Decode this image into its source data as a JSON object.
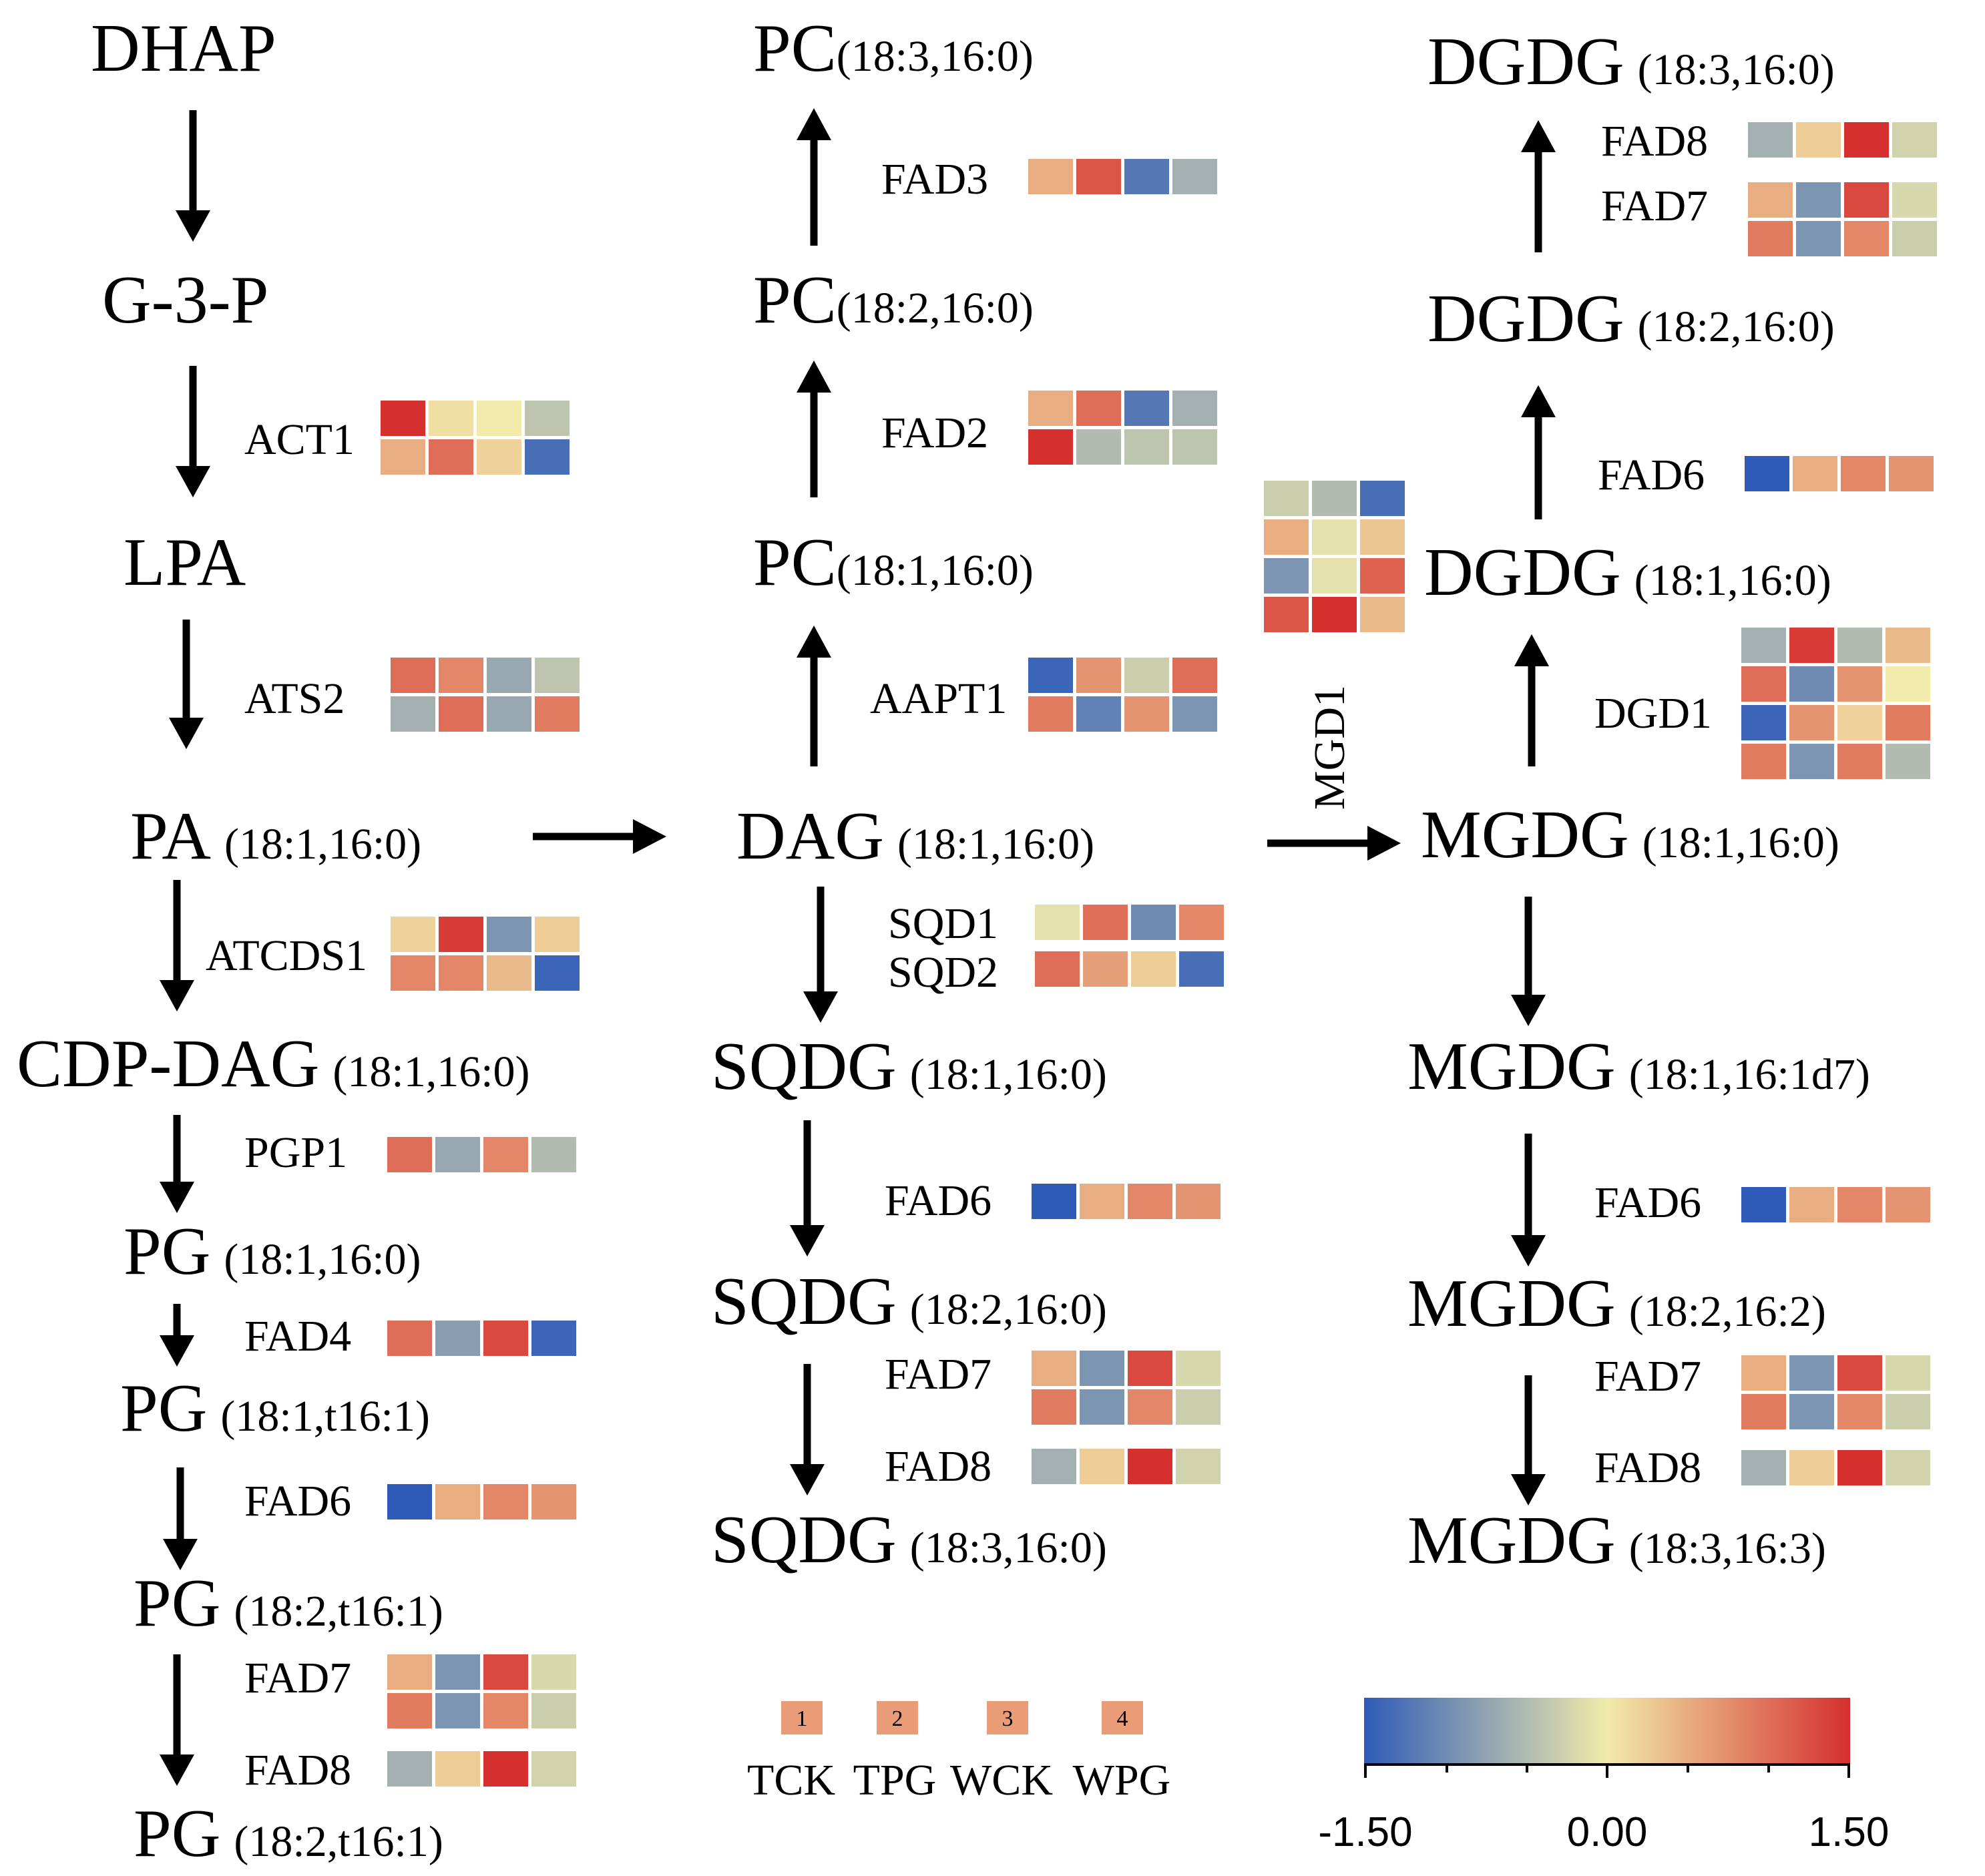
{
  "colormap": {
    "min": -1.5,
    "max": 1.5,
    "stops": [
      "#2e5bb7",
      "#f2ebab",
      "#d5302e"
    ]
  },
  "metabolites": [
    {
      "id": "m-dhap",
      "name": "DHAP",
      "sub": ""
    },
    {
      "id": "m-g3p",
      "name": "G-3-P",
      "sub": ""
    },
    {
      "id": "m-lpa",
      "name": "LPA",
      "sub": ""
    },
    {
      "id": "m-pa",
      "name": "PA",
      "sub": "(18:1,16:0)"
    },
    {
      "id": "m-cdpdag",
      "name": "CDP-DAG",
      "sub": "(18:1,16:0)"
    },
    {
      "id": "m-pg1",
      "name": "PG",
      "sub": "(18:1,16:0)"
    },
    {
      "id": "m-pg2",
      "name": "PG",
      "sub": "(18:1,t16:1)"
    },
    {
      "id": "m-pg3",
      "name": "PG",
      "sub": "(18:2,t16:1)"
    },
    {
      "id": "m-pg4",
      "name": "PG",
      "sub": "(18:2,t16:1)"
    },
    {
      "id": "m-pc3",
      "name": "PC",
      "sub": "(18:3,16:0)"
    },
    {
      "id": "m-pc2",
      "name": "PC",
      "sub": "(18:2,16:0)"
    },
    {
      "id": "m-pc1",
      "name": "PC",
      "sub": "(18:1,16:0)"
    },
    {
      "id": "m-dag",
      "name": "DAG",
      "sub": "(18:1,16:0)"
    },
    {
      "id": "m-sqdg1",
      "name": "SQDG",
      "sub": "(18:1,16:0)"
    },
    {
      "id": "m-sqdg2",
      "name": "SQDG",
      "sub": "(18:2,16:0)"
    },
    {
      "id": "m-sqdg3",
      "name": "SQDG",
      "sub": "(18:3,16:0)"
    },
    {
      "id": "m-dgdg3",
      "name": "DGDG",
      "sub": "(18:3,16:0)"
    },
    {
      "id": "m-dgdg2",
      "name": "DGDG",
      "sub": "(18:2,16:0)"
    },
    {
      "id": "m-dgdg1",
      "name": "DGDG",
      "sub": "(18:1,16:0)"
    },
    {
      "id": "m-mgdg1",
      "name": "MGDG",
      "sub": "(18:1,16:0)"
    },
    {
      "id": "m-mgdg2",
      "name": "MGDG",
      "sub": "(18:1,16:1d7)"
    },
    {
      "id": "m-mgdg3",
      "name": "MGDG",
      "sub": "(18:2,16:2)"
    },
    {
      "id": "m-mgdg4",
      "name": "MGDG",
      "sub": "(18:3,16:3)"
    }
  ],
  "genes": [
    {
      "id": "g-act1",
      "label": "ACT1",
      "rows": [
        [
          1.5,
          0.1,
          0.0,
          -0.4
        ],
        [
          0.5,
          1.0,
          0.2,
          -1.3
        ]
      ]
    },
    {
      "id": "g-ats2",
      "label": "ATS2",
      "rows": [
        [
          1.0,
          0.8,
          -0.7,
          -0.4
        ],
        [
          -0.6,
          1.0,
          -0.7,
          0.9
        ]
      ]
    },
    {
      "id": "g-atcds1",
      "label": "ATCDS1",
      "rows": [
        [
          0.2,
          1.4,
          -0.9,
          0.25
        ],
        [
          0.8,
          0.8,
          0.4,
          -1.4
        ]
      ]
    },
    {
      "id": "g-pgp1",
      "label": "PGP1",
      "rows": [
        [
          1.0,
          -0.7,
          0.8,
          -0.5
        ]
      ]
    },
    {
      "id": "g-fad4",
      "label": "FAD4",
      "rows": [
        [
          1.0,
          -0.8,
          1.3,
          -1.4
        ]
      ]
    },
    {
      "id": "g-fad6-pg",
      "label": "FAD6",
      "rows": [
        [
          -1.5,
          0.5,
          0.8,
          0.7
        ]
      ]
    },
    {
      "id": "g-fad7-pg",
      "label": "FAD7",
      "rows": [
        [
          0.5,
          -0.9,
          1.3,
          -0.2
        ],
        [
          0.9,
          -0.9,
          0.8,
          -0.3
        ]
      ]
    },
    {
      "id": "g-fad8-pg",
      "label": "FAD8",
      "rows": [
        [
          -0.6,
          0.25,
          1.5,
          -0.25
        ]
      ]
    },
    {
      "id": "g-fad3",
      "label": "FAD3",
      "rows": [
        [
          0.5,
          1.2,
          -1.2,
          -0.6
        ]
      ]
    },
    {
      "id": "g-fad2",
      "label": "FAD2",
      "rows": [
        [
          0.5,
          1.0,
          -1.2,
          -0.6
        ],
        [
          1.5,
          -0.5,
          -0.4,
          -0.4
        ]
      ]
    },
    {
      "id": "g-aapt1",
      "label": "AAPT1",
      "rows": [
        [
          -1.4,
          0.7,
          -0.3,
          1.0
        ],
        [
          0.9,
          -1.1,
          0.7,
          -0.9
        ]
      ]
    },
    {
      "id": "g-sqd1",
      "label": "SQD1",
      "rows": [
        [
          -0.1,
          1.0,
          -1.0,
          0.8
        ]
      ]
    },
    {
      "id": "g-sqd2",
      "label": "SQD2",
      "rows": [
        [
          1.0,
          0.6,
          0.25,
          -1.3
        ]
      ]
    },
    {
      "id": "g-fad6-sq",
      "label": "FAD6",
      "rows": [
        [
          -1.5,
          0.5,
          0.8,
          0.7
        ]
      ]
    },
    {
      "id": "g-fad7-sq",
      "label": "FAD7",
      "rows": [
        [
          0.5,
          -0.9,
          1.3,
          -0.2
        ],
        [
          0.9,
          -0.9,
          0.8,
          -0.3
        ]
      ]
    },
    {
      "id": "g-fad8-sq",
      "label": "FAD8",
      "rows": [
        [
          -0.6,
          0.25,
          1.5,
          -0.25
        ]
      ]
    },
    {
      "id": "g-fad8-dg",
      "label": "FAD8",
      "rows": [
        [
          -0.6,
          0.25,
          1.5,
          -0.25
        ]
      ]
    },
    {
      "id": "g-fad7-dg",
      "label": "FAD7",
      "rows": [
        [
          0.5,
          -0.9,
          1.3,
          -0.2
        ],
        [
          0.9,
          -0.9,
          0.8,
          -0.3
        ]
      ]
    },
    {
      "id": "g-fad6-dg",
      "label": "FAD6",
      "rows": [
        [
          -1.5,
          0.5,
          0.8,
          0.7
        ]
      ]
    },
    {
      "id": "g-dgd1",
      "label": "DGD1",
      "rows": [
        [
          -0.6,
          1.4,
          -0.5,
          0.4
        ],
        [
          1.0,
          -1.0,
          0.7,
          0.0
        ],
        [
          -1.4,
          0.7,
          0.2,
          0.9
        ],
        [
          0.9,
          -0.9,
          0.9,
          -0.5
        ]
      ]
    },
    {
      "id": "g-mgd1",
      "label": "MGD1",
      "rows": [
        [
          -0.3,
          -0.5,
          -1.3
        ],
        [
          0.5,
          -0.1,
          0.3
        ],
        [
          -0.9,
          -0.1,
          1.1
        ],
        [
          1.2,
          1.5,
          0.4
        ]
      ]
    },
    {
      "id": "g-fad6-mg",
      "label": "FAD6",
      "rows": [
        [
          -1.5,
          0.5,
          0.8,
          0.7
        ]
      ]
    },
    {
      "id": "g-fad7-mg",
      "label": "FAD7",
      "rows": [
        [
          0.5,
          -0.9,
          1.3,
          -0.2
        ],
        [
          0.9,
          -0.9,
          0.8,
          -0.3
        ]
      ]
    },
    {
      "id": "g-fad8-mg",
      "label": "FAD8",
      "rows": [
        [
          -0.6,
          0.25,
          1.5,
          -0.25
        ]
      ]
    }
  ],
  "legend": {
    "numbers": [
      "1",
      "2",
      "3",
      "4"
    ],
    "groups": [
      "TCK",
      "TPG",
      "WCK",
      "WPG"
    ]
  },
  "colorbar": {
    "min_label": "-1.50",
    "mid_label": "0.00",
    "max_label": "1.50"
  }
}
